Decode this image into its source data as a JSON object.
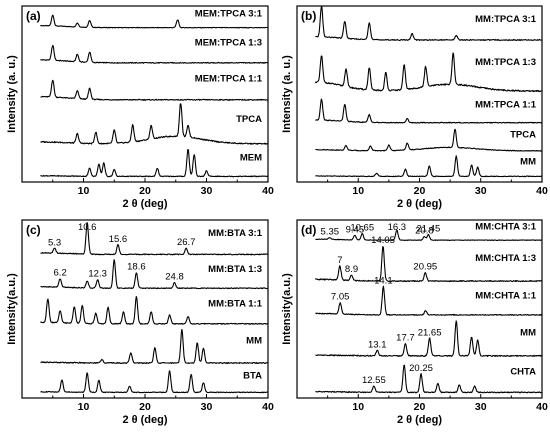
{
  "chart_data": [
    {
      "panel": "(a)",
      "type": "line",
      "xlabel": "2 θ (deg)",
      "ylabel": "Intensity (a. u.)",
      "xlim": [
        0,
        40
      ],
      "xticks": [
        10,
        20,
        30,
        40
      ],
      "series": [
        {
          "name": "MEM:TPCA 3:1",
          "peaks": [
            [
              5.0,
              0.55
            ],
            [
              9.0,
              0.2
            ],
            [
              11.0,
              0.35
            ],
            [
              25.3,
              0.4
            ]
          ],
          "base": 0.1,
          "rise": 0.0
        },
        {
          "name": "MEM:TPCA 1:3",
          "peaks": [
            [
              5.0,
              0.5
            ],
            [
              9.0,
              0.25
            ],
            [
              11.0,
              0.35
            ]
          ],
          "base": 0.1,
          "rise": 0.0
        },
        {
          "name": "MEM:TPCA 1:1",
          "peaks": [
            [
              5.0,
              0.55
            ],
            [
              9.0,
              0.25
            ],
            [
              11.0,
              0.35
            ]
          ],
          "base": 0.1,
          "rise": 0.0
        },
        {
          "name": "TPCA",
          "peaks": [
            [
              9.0,
              0.25
            ],
            [
              12.0,
              0.3
            ],
            [
              15.0,
              0.35
            ],
            [
              18.0,
              0.45
            ],
            [
              21.0,
              0.35
            ],
            [
              25.8,
              0.9
            ],
            [
              27.0,
              0.3
            ]
          ],
          "base": 0.05,
          "rise": 0.2
        },
        {
          "name": "MEM",
          "peaks": [
            [
              11.0,
              0.3
            ],
            [
              12.5,
              0.45
            ],
            [
              13.3,
              0.5
            ],
            [
              15.0,
              0.25
            ],
            [
              22.0,
              0.3
            ],
            [
              27.0,
              1.0
            ],
            [
              28.0,
              0.8
            ],
            [
              30.0,
              0.2
            ]
          ],
          "base": 0.02,
          "rise": 0.0
        }
      ],
      "annotations": []
    },
    {
      "panel": "(b)",
      "type": "line",
      "xlabel": "2 θ (deg)",
      "ylabel": "Intensity (a. u.)",
      "xlim": [
        0,
        40
      ],
      "xticks": [
        10,
        20,
        30,
        40
      ],
      "series": [
        {
          "name": "MM:TPCA 3:1",
          "peaks": [
            [
              4.0,
              1.0
            ],
            [
              7.8,
              0.55
            ],
            [
              11.8,
              0.55
            ],
            [
              18.8,
              0.2
            ],
            [
              26.0,
              0.15
            ]
          ],
          "base": 0.1,
          "rise": 0.0
        },
        {
          "name": "MM:TPCA 1:3",
          "peaks": [
            [
              4.0,
              0.6
            ],
            [
              8.0,
              0.4
            ],
            [
              11.8,
              0.5
            ],
            [
              14.5,
              0.4
            ],
            [
              17.5,
              0.55
            ],
            [
              21.0,
              0.45
            ],
            [
              25.5,
              0.7
            ]
          ],
          "base": 0.2,
          "rise": 0.15
        },
        {
          "name": "MM:TPCA 1:1",
          "peaks": [
            [
              4.0,
              0.8
            ],
            [
              7.8,
              0.65
            ],
            [
              11.8,
              0.3
            ],
            [
              18.0,
              0.15
            ]
          ],
          "base": 0.1,
          "rise": 0.0
        },
        {
          "name": "TPCA",
          "peaks": [
            [
              8.0,
              0.2
            ],
            [
              12.0,
              0.2
            ],
            [
              15.0,
              0.25
            ],
            [
              18.0,
              0.3
            ],
            [
              25.8,
              0.8
            ]
          ],
          "base": 0.05,
          "rise": 0.15
        },
        {
          "name": "MM",
          "peaks": [
            [
              13.0,
              0.15
            ],
            [
              17.7,
              0.35
            ],
            [
              21.6,
              0.5
            ],
            [
              26.0,
              1.0
            ],
            [
              28.5,
              0.55
            ],
            [
              29.5,
              0.45
            ]
          ],
          "base": 0.02,
          "rise": 0.0
        }
      ],
      "annotations": []
    },
    {
      "panel": "(c)",
      "type": "line",
      "xlabel": "2 θ (deg)",
      "ylabel": "Intensity(a.u.)",
      "xlim": [
        0,
        40
      ],
      "xticks": [
        10,
        20,
        30,
        40
      ],
      "series": [
        {
          "name": "MM:BTA 3:1",
          "peaks": [
            [
              5.3,
              0.15
            ],
            [
              10.6,
              1.0
            ],
            [
              15.6,
              0.3
            ],
            [
              26.7,
              0.2
            ]
          ],
          "base": 0.05,
          "rise": 0.0
        },
        {
          "name": "MM:BTA 1:3",
          "peaks": [
            [
              6.2,
              0.3
            ],
            [
              10.6,
              0.25
            ],
            [
              12.3,
              0.3
            ],
            [
              15.0,
              1.0
            ],
            [
              18.6,
              0.55
            ],
            [
              24.8,
              0.2
            ]
          ],
          "base": 0.05,
          "rise": 0.0
        },
        {
          "name": "MM:BTA 1:1",
          "peaks": [
            [
              4.2,
              0.8
            ],
            [
              6.2,
              0.4
            ],
            [
              8.5,
              0.55
            ],
            [
              9.8,
              0.6
            ],
            [
              12.0,
              0.35
            ],
            [
              14.0,
              0.55
            ],
            [
              16.5,
              0.4
            ],
            [
              18.6,
              0.9
            ],
            [
              21.0,
              0.4
            ],
            [
              24.0,
              0.3
            ],
            [
              27.0,
              0.25
            ]
          ],
          "base": 0.05,
          "rise": 0.0
        },
        {
          "name": "MM",
          "peaks": [
            [
              13.0,
              0.1
            ],
            [
              17.7,
              0.3
            ],
            [
              21.6,
              0.45
            ],
            [
              26.0,
              1.0
            ],
            [
              28.5,
              0.6
            ],
            [
              29.5,
              0.45
            ]
          ],
          "base": 0.02,
          "rise": 0.0
        },
        {
          "name": "BTA",
          "peaks": [
            [
              6.5,
              0.5
            ],
            [
              10.6,
              0.8
            ],
            [
              12.5,
              0.5
            ],
            [
              17.5,
              0.25
            ],
            [
              24.0,
              0.9
            ],
            [
              27.5,
              0.75
            ],
            [
              29.5,
              0.4
            ]
          ],
          "base": 0.02,
          "rise": 0.0
        }
      ],
      "annotations": [
        {
          "text": "10.6",
          "x": 10.6,
          "series": 0
        },
        {
          "text": "5.3",
          "x": 5.3,
          "series": 0
        },
        {
          "text": "15.6",
          "x": 15.6,
          "series": 0
        },
        {
          "text": "26.7",
          "x": 26.7,
          "series": 0
        },
        {
          "text": "6.2",
          "x": 6.2,
          "series": 1
        },
        {
          "text": "12.3",
          "x": 12.3,
          "series": 1
        },
        {
          "text": "18.6",
          "x": 18.6,
          "series": 1
        },
        {
          "text": "24.8",
          "x": 24.8,
          "series": 1
        }
      ]
    },
    {
      "panel": "(d)",
      "type": "line",
      "xlabel": "2 θ (deg)",
      "ylabel": "Intensity(a.u.)",
      "xlim": [
        0,
        40
      ],
      "xticks": [
        10,
        20,
        30,
        40
      ],
      "series": [
        {
          "name": "MM:CHTA 3:1",
          "peaks": [
            [
              5.35,
              0.1
            ],
            [
              9.45,
              0.25
            ],
            [
              10.65,
              0.35
            ],
            [
              16.3,
              0.55
            ],
            [
              20.8,
              0.2
            ],
            [
              21.45,
              0.3
            ]
          ],
          "base": 0.05,
          "rise": 0.0
        },
        {
          "name": "MM:CHTA 1:3",
          "peaks": [
            [
              7.0,
              0.4
            ],
            [
              8.9,
              0.15
            ],
            [
              14.05,
              1.0
            ],
            [
              20.95,
              0.25
            ]
          ],
          "base": 0.05,
          "rise": 0.0
        },
        {
          "name": "MM:CHTA 1:1",
          "peaks": [
            [
              7.05,
              0.4
            ],
            [
              14.1,
              1.0
            ],
            [
              21.0,
              0.15
            ]
          ],
          "base": 0.05,
          "rise": 0.0
        },
        {
          "name": "MM",
          "peaks": [
            [
              13.1,
              0.15
            ],
            [
              17.7,
              0.35
            ],
            [
              21.65,
              0.5
            ],
            [
              26.0,
              1.0
            ],
            [
              28.5,
              0.55
            ],
            [
              29.5,
              0.45
            ]
          ],
          "base": 0.02,
          "rise": 0.0
        },
        {
          "name": "CHTA",
          "peaks": [
            [
              12.55,
              0.2
            ],
            [
              17.5,
              0.9
            ],
            [
              20.25,
              0.6
            ],
            [
              23.0,
              0.3
            ],
            [
              26.5,
              0.25
            ],
            [
              29.0,
              0.2
            ]
          ],
          "base": 0.02,
          "rise": 0.0
        }
      ],
      "annotations": [
        {
          "text": "5.35",
          "x": 5.35,
          "series": 0
        },
        {
          "text": "9.45",
          "x": 9.45,
          "series": 0
        },
        {
          "text": "10.65",
          "x": 10.65,
          "series": 0
        },
        {
          "text": "16.3",
          "x": 16.3,
          "series": 0
        },
        {
          "text": "20.8",
          "x": 20.8,
          "series": 0
        },
        {
          "text": "21.45",
          "x": 21.45,
          "series": 0
        },
        {
          "text": "7",
          "x": 7.0,
          "series": 1
        },
        {
          "text": "8.9",
          "x": 8.9,
          "series": 1
        },
        {
          "text": "14.05",
          "x": 14.05,
          "series": 1
        },
        {
          "text": "20.95",
          "x": 20.95,
          "series": 1
        },
        {
          "text": "7.05",
          "x": 7.05,
          "series": 2
        },
        {
          "text": "14.1",
          "x": 14.1,
          "series": 2
        },
        {
          "text": "13.1",
          "x": 13.1,
          "series": 3
        },
        {
          "text": "17.7",
          "x": 17.7,
          "series": 3
        },
        {
          "text": "21.65",
          "x": 21.65,
          "series": 3
        },
        {
          "text": "12.55",
          "x": 12.55,
          "series": 4
        },
        {
          "text": "20.25",
          "x": 20.25,
          "series": 4
        }
      ]
    }
  ]
}
